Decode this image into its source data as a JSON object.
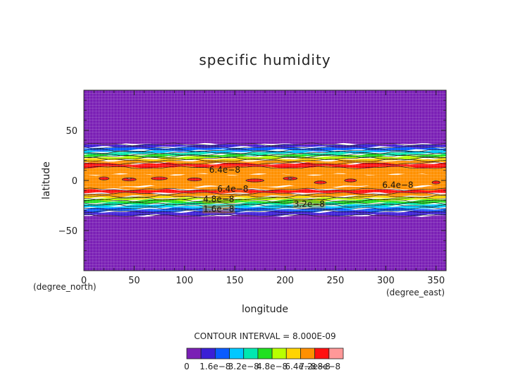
{
  "chart_data": {
    "type": "heatmap",
    "title": "specific humidity",
    "xlabel": "longitude",
    "ylabel": "latitude",
    "x_unit": "(degree_east)",
    "y_unit": "(degree_north)",
    "xlim": [
      0,
      360
    ],
    "ylim": [
      -90,
      90
    ],
    "x_ticks": [
      "0",
      "50",
      "100",
      "150",
      "200",
      "250",
      "300",
      "350"
    ],
    "x_tick_values": [
      0,
      50,
      100,
      150,
      200,
      250,
      300,
      350
    ],
    "y_ticks": [
      "50",
      "0",
      "−50"
    ],
    "y_tick_values": [
      50,
      0,
      -50
    ],
    "contour_interval_text": "CONTOUR INTERVAL = 8.000E-09",
    "colorbar": {
      "levels": [
        0,
        8e-09,
        1.6e-08,
        2.4e-08,
        3.2e-08,
        4e-08,
        4.8e-08,
        5.6e-08,
        6.4e-08,
        7.2e-08,
        8e-08
      ],
      "labels": [
        "0",
        "1.6e−8",
        "3.2e−8",
        "4.8e−8",
        "6.4e−8",
        "7.2e−8",
        "8e−8"
      ],
      "colors": [
        "#7a1fb5",
        "#3b1fd6",
        "#0a5cff",
        "#00c8ff",
        "#00e8b0",
        "#20e020",
        "#b8ff00",
        "#ffd400",
        "#ff9000",
        "#ff1010",
        "#ff9898"
      ]
    },
    "contour_labels": [
      {
        "text": "6.4e−8",
        "lon": 140,
        "lat": 9
      },
      {
        "text": "6.4e−8",
        "lon": 148,
        "lat": -10
      },
      {
        "text": "6.4e−8",
        "lon": 312,
        "lat": -6
      },
      {
        "text": "4.8e−8",
        "lon": 134,
        "lat": -20
      },
      {
        "text": "3.2e−8",
        "lon": 224,
        "lat": -25
      },
      {
        "text": "1.6e−8",
        "lon": 134,
        "lat": -30
      }
    ],
    "bands": [
      {
        "lat_min": 13,
        "lat_max": 17,
        "level": 9
      },
      {
        "lat_min": -13,
        "lat_max": -9,
        "level": 9
      },
      {
        "lat_min": -6,
        "lat_max": 6,
        "level": 8
      },
      {
        "lat_min": 6,
        "lat_max": 13,
        "level": 8
      },
      {
        "lat_min": -9,
        "lat_max": -6,
        "level": 8
      },
      {
        "lat_min": 17,
        "lat_max": 20,
        "level": 8
      },
      {
        "lat_min": -16,
        "lat_max": -13,
        "level": 8
      },
      {
        "lat_min": 20,
        "lat_max": 22,
        "level": 7
      },
      {
        "lat_min": -18,
        "lat_max": -16,
        "level": 7
      },
      {
        "lat_min": 22,
        "lat_max": 24,
        "level": 6
      },
      {
        "lat_min": -20,
        "lat_max": -18,
        "level": 6
      },
      {
        "lat_min": 24,
        "lat_max": 26,
        "level": 5
      },
      {
        "lat_min": -23,
        "lat_max": -20,
        "level": 5
      },
      {
        "lat_min": 26,
        "lat_max": 28,
        "level": 4
      },
      {
        "lat_min": -25,
        "lat_max": -23,
        "level": 4
      },
      {
        "lat_min": 28,
        "lat_max": 30,
        "level": 3
      },
      {
        "lat_min": -28,
        "lat_max": -25,
        "level": 3
      },
      {
        "lat_min": 30,
        "lat_max": 33,
        "level": 2
      },
      {
        "lat_min": -31,
        "lat_max": -28,
        "level": 2
      },
      {
        "lat_min": 33,
        "lat_max": 36,
        "level": 1
      },
      {
        "lat_min": -35,
        "lat_max": -31,
        "level": 1
      },
      {
        "lat_min": 36,
        "lat_max": 90,
        "level": 0
      },
      {
        "lat_min": -90,
        "lat_max": -35,
        "level": 0
      }
    ],
    "blobs": [
      {
        "lon": 20,
        "lat": 2,
        "w": 10,
        "h": 3,
        "level": 9.5
      },
      {
        "lon": 45,
        "lat": 1,
        "w": 14,
        "h": 3,
        "level": 9.5
      },
      {
        "lon": 75,
        "lat": 2,
        "w": 16,
        "h": 3,
        "level": 9.5
      },
      {
        "lon": 110,
        "lat": 1,
        "w": 14,
        "h": 3,
        "level": 9.5
      },
      {
        "lon": 170,
        "lat": 0,
        "w": 18,
        "h": 3,
        "level": 9.5
      },
      {
        "lon": 205,
        "lat": 2,
        "w": 14,
        "h": 3,
        "level": 9.5
      },
      {
        "lon": 235,
        "lat": -2,
        "w": 12,
        "h": 3,
        "level": 9.5
      },
      {
        "lon": 265,
        "lat": 0,
        "w": 12,
        "h": 3,
        "level": 9.5
      },
      {
        "lon": 350,
        "lat": -2,
        "w": 8,
        "h": 3,
        "level": 9.5
      },
      {
        "lon": 45,
        "lat": 2,
        "w": 4,
        "h": 1.2,
        "level": 10
      },
      {
        "lon": 205,
        "lat": 2,
        "w": 4,
        "h": 1.2,
        "level": 10
      }
    ],
    "contour_lines": [
      {
        "level": 0,
        "lat": 36
      },
      {
        "level": 0,
        "lat": -35
      },
      {
        "level": 1,
        "lat": 33
      },
      {
        "level": 1,
        "lat": -31
      },
      {
        "level": 2,
        "lat": 30
      },
      {
        "level": 2,
        "lat": -28
      },
      {
        "level": 3,
        "lat": 28
      },
      {
        "level": 3,
        "lat": -25
      },
      {
        "level": 4,
        "lat": 26
      },
      {
        "level": 4,
        "lat": -23
      },
      {
        "level": 5,
        "lat": 24
      },
      {
        "level": 5,
        "lat": -20
      },
      {
        "level": 6,
        "lat": 22
      },
      {
        "level": 6,
        "lat": -18
      },
      {
        "level": 7,
        "lat": 20
      },
      {
        "level": 7,
        "lat": -16
      },
      {
        "level": 8,
        "lat": 17
      },
      {
        "level": 8,
        "lat": -13
      },
      {
        "level": 8,
        "lat": 13
      },
      {
        "level": 8,
        "lat": -9
      }
    ]
  }
}
